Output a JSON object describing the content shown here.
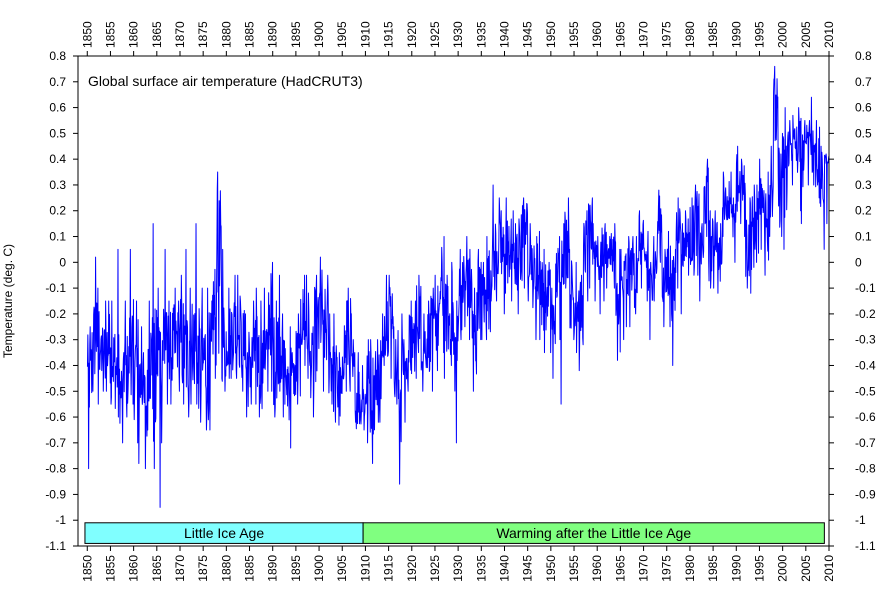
{
  "chart_data": {
    "type": "line",
    "title": "Global surface air temperature (HadCRUT3)",
    "ylabel": "Temperature (deg. C)",
    "xlim": [
      1848,
      2010
    ],
    "ylim": [
      -1.1,
      0.8
    ],
    "x_ticks": [
      1850,
      1855,
      1860,
      1865,
      1870,
      1875,
      1880,
      1885,
      1890,
      1895,
      1900,
      1905,
      1910,
      1915,
      1920,
      1925,
      1930,
      1935,
      1940,
      1945,
      1950,
      1955,
      1960,
      1965,
      1970,
      1975,
      1980,
      1985,
      1990,
      1995,
      2000,
      2005,
      2010
    ],
    "y_ticks": [
      0.8,
      0.7,
      0.6,
      0.5,
      0.4,
      0.3,
      0.2,
      0.1,
      0,
      -0.1,
      -0.2,
      -0.3,
      -0.4,
      -0.5,
      -0.6,
      -0.7,
      -0.8,
      -0.9,
      -1,
      -1.1
    ],
    "y_tick_labels": [
      "0.8",
      "0.7",
      "0.6",
      "0.5",
      "0.4",
      "0.3",
      "0.2",
      "0.1",
      "0",
      "-0.1",
      "-0.2",
      "-0.3",
      "-0.4",
      "-0.5",
      "-0.6",
      "-0.7",
      "-0.8",
      "-0.9",
      "-1",
      "-1.1"
    ],
    "grid": false,
    "series": [
      {
        "color": "#0000ff",
        "resolution": "monthly (approximate reading of yearly envelope)",
        "x": [
          1850,
          1851,
          1852,
          1853,
          1854,
          1855,
          1856,
          1857,
          1858,
          1859,
          1860,
          1861,
          1862,
          1863,
          1864,
          1865,
          1866,
          1867,
          1868,
          1869,
          1870,
          1871,
          1872,
          1873,
          1874,
          1875,
          1876,
          1877,
          1878,
          1879,
          1880,
          1881,
          1882,
          1883,
          1884,
          1885,
          1886,
          1887,
          1888,
          1889,
          1890,
          1891,
          1892,
          1893,
          1894,
          1895,
          1896,
          1897,
          1898,
          1899,
          1900,
          1901,
          1902,
          1903,
          1904,
          1905,
          1906,
          1907,
          1908,
          1909,
          1910,
          1911,
          1912,
          1913,
          1914,
          1915,
          1916,
          1917,
          1918,
          1919,
          1920,
          1921,
          1922,
          1923,
          1924,
          1925,
          1926,
          1927,
          1928,
          1929,
          1930,
          1931,
          1932,
          1933,
          1934,
          1935,
          1936,
          1937,
          1938,
          1939,
          1940,
          1941,
          1942,
          1943,
          1944,
          1945,
          1946,
          1947,
          1948,
          1949,
          1950,
          1951,
          1952,
          1953,
          1954,
          1955,
          1956,
          1957,
          1958,
          1959,
          1960,
          1961,
          1962,
          1963,
          1964,
          1965,
          1966,
          1967,
          1968,
          1969,
          1970,
          1971,
          1972,
          1973,
          1974,
          1975,
          1976,
          1977,
          1978,
          1979,
          1980,
          1981,
          1982,
          1983,
          1984,
          1985,
          1986,
          1987,
          1988,
          1989,
          1990,
          1991,
          1992,
          1993,
          1994,
          1995,
          1996,
          1997,
          1998,
          1999,
          2000,
          2001,
          2002,
          2003,
          2004,
          2005,
          2006,
          2007,
          2008,
          2009
        ],
        "mean": [
          -0.45,
          -0.3,
          -0.3,
          -0.35,
          -0.33,
          -0.38,
          -0.42,
          -0.5,
          -0.42,
          -0.33,
          -0.4,
          -0.46,
          -0.55,
          -0.38,
          -0.46,
          -0.35,
          -0.3,
          -0.32,
          -0.34,
          -0.3,
          -0.32,
          -0.36,
          -0.3,
          -0.32,
          -0.38,
          -0.38,
          -0.4,
          -0.2,
          -0.05,
          -0.3,
          -0.28,
          -0.26,
          -0.26,
          -0.32,
          -0.4,
          -0.38,
          -0.36,
          -0.4,
          -0.33,
          -0.2,
          -0.38,
          -0.32,
          -0.42,
          -0.45,
          -0.45,
          -0.38,
          -0.22,
          -0.26,
          -0.4,
          -0.28,
          -0.2,
          -0.26,
          -0.38,
          -0.45,
          -0.52,
          -0.33,
          -0.3,
          -0.45,
          -0.52,
          -0.53,
          -0.48,
          -0.5,
          -0.44,
          -0.42,
          -0.22,
          -0.17,
          -0.4,
          -0.48,
          -0.4,
          -0.33,
          -0.3,
          -0.2,
          -0.32,
          -0.3,
          -0.3,
          -0.22,
          -0.1,
          -0.22,
          -0.2,
          -0.35,
          -0.12,
          -0.08,
          -0.1,
          -0.3,
          -0.12,
          -0.15,
          -0.1,
          0.0,
          0.05,
          0.02,
          0.05,
          0.05,
          0.0,
          0.05,
          0.15,
          0.03,
          -0.05,
          -0.05,
          -0.12,
          -0.12,
          -0.22,
          -0.05,
          0.02,
          0.08,
          -0.12,
          -0.15,
          -0.2,
          0.05,
          0.1,
          0.05,
          0.0,
          0.05,
          0.03,
          0.05,
          -0.2,
          -0.1,
          -0.05,
          -0.02,
          -0.06,
          0.08,
          0.02,
          -0.08,
          0.0,
          0.15,
          -0.08,
          -0.03,
          -0.1,
          0.15,
          0.05,
          0.1,
          0.1,
          0.15,
          0.05,
          0.25,
          0.05,
          0.1,
          0.0,
          0.25,
          0.25,
          0.15,
          0.3,
          0.3,
          0.08,
          0.12,
          0.15,
          0.28,
          0.15,
          0.3,
          0.57,
          0.3,
          0.3,
          0.45,
          0.45,
          0.45,
          0.4,
          0.5,
          0.45,
          0.4,
          0.3,
          0.4
        ],
        "max": [
          -0.25,
          0.02,
          -0.1,
          -0.15,
          -0.15,
          -0.15,
          0.05,
          -0.35,
          -0.15,
          0.05,
          -0.15,
          -0.25,
          -0.35,
          -0.15,
          0.15,
          -0.1,
          0.05,
          -0.15,
          -0.1,
          -0.15,
          -0.05,
          0.05,
          -0.1,
          0.15,
          -0.1,
          -0.1,
          -0.15,
          0.05,
          0.35,
          0.05,
          -0.1,
          -0.05,
          -0.05,
          -0.15,
          -0.2,
          -0.15,
          -0.1,
          -0.15,
          -0.1,
          0.0,
          -0.15,
          -0.05,
          -0.2,
          -0.25,
          -0.35,
          -0.2,
          -0.05,
          -0.05,
          -0.25,
          -0.05,
          0.02,
          -0.05,
          -0.2,
          -0.2,
          -0.35,
          -0.15,
          -0.1,
          -0.3,
          -0.35,
          -0.4,
          -0.3,
          -0.3,
          -0.3,
          -0.2,
          -0.05,
          -0.05,
          -0.25,
          -0.2,
          -0.3,
          -0.15,
          -0.15,
          -0.05,
          -0.2,
          -0.15,
          -0.1,
          -0.05,
          0.1,
          -0.05,
          0.0,
          -0.15,
          0.05,
          0.1,
          0.05,
          -0.1,
          0.05,
          0.0,
          0.1,
          0.3,
          0.25,
          0.2,
          0.25,
          0.2,
          0.15,
          0.22,
          0.25,
          0.15,
          0.1,
          0.12,
          0.05,
          0.0,
          -0.1,
          0.1,
          0.15,
          0.25,
          0.05,
          0.0,
          -0.05,
          0.2,
          0.25,
          0.15,
          0.1,
          0.15,
          0.1,
          0.15,
          0.05,
          0.05,
          0.1,
          0.1,
          0.1,
          0.2,
          0.12,
          0.0,
          0.1,
          0.28,
          0.05,
          0.12,
          0.05,
          0.25,
          0.15,
          0.2,
          0.25,
          0.3,
          0.15,
          0.4,
          0.2,
          0.2,
          0.15,
          0.35,
          0.35,
          0.25,
          0.45,
          0.4,
          0.25,
          0.3,
          0.3,
          0.4,
          0.35,
          0.45,
          0.76,
          0.5,
          0.6,
          0.55,
          0.57,
          0.6,
          0.55,
          0.55,
          0.64,
          0.55,
          0.45,
          0.42
        ],
        "min": [
          -0.8,
          -0.5,
          -0.55,
          -0.5,
          -0.5,
          -0.55,
          -0.6,
          -0.7,
          -0.6,
          -0.55,
          -0.7,
          -0.78,
          -0.8,
          -0.65,
          -0.8,
          -0.95,
          -0.7,
          -0.55,
          -0.55,
          -0.5,
          -0.55,
          -0.6,
          -0.55,
          -0.55,
          -0.62,
          -0.65,
          -0.65,
          -0.45,
          -0.45,
          -0.5,
          -0.45,
          -0.45,
          -0.45,
          -0.5,
          -0.6,
          -0.55,
          -0.55,
          -0.6,
          -0.5,
          -0.5,
          -0.6,
          -0.5,
          -0.6,
          -0.72,
          -0.98,
          -0.55,
          -0.4,
          -0.45,
          -0.6,
          -0.5,
          -0.5,
          -0.45,
          -0.55,
          -0.62,
          -0.72,
          -0.5,
          -0.5,
          -0.62,
          -0.68,
          -0.65,
          -0.7,
          -0.78,
          -0.62,
          -0.62,
          -0.4,
          -0.45,
          -0.55,
          -0.86,
          -0.62,
          -0.5,
          -0.45,
          -0.35,
          -0.5,
          -0.45,
          -0.5,
          -0.42,
          -0.35,
          -0.45,
          -0.4,
          -0.7,
          -0.3,
          -0.25,
          -0.3,
          -0.5,
          -0.3,
          -0.3,
          -0.3,
          -0.15,
          -0.15,
          -0.2,
          -0.12,
          -0.15,
          -0.2,
          -0.15,
          -0.1,
          -0.15,
          -0.3,
          -0.3,
          -0.35,
          -0.35,
          -0.45,
          -0.3,
          -0.55,
          -0.1,
          -0.3,
          -0.35,
          -0.42,
          -0.15,
          -0.1,
          -0.15,
          -0.2,
          -0.15,
          -0.1,
          -0.1,
          -0.38,
          -0.3,
          -0.25,
          -0.25,
          -0.2,
          -0.1,
          -0.15,
          -0.3,
          -0.15,
          0.0,
          -0.25,
          -0.25,
          -0.4,
          -0.1,
          -0.2,
          -0.05,
          -0.05,
          -0.05,
          -0.15,
          0.1,
          -0.1,
          -0.1,
          -0.12,
          0.1,
          0.0,
          0.0,
          0.15,
          0.1,
          -0.1,
          -0.12,
          0.0,
          0.05,
          -0.05,
          0.1,
          0.1,
          0.1,
          0.05,
          0.2,
          0.3,
          0.2,
          0.15,
          0.3,
          0.3,
          0.25,
          0.05,
          0.15
        ]
      }
    ],
    "annotations": [
      {
        "text": "Little Ice Age",
        "x_start": 1849.5,
        "x_end": 1909.5,
        "y_top": -1.01,
        "y_bottom": -1.09,
        "fill": "#80ffff"
      },
      {
        "text": "Warming after the Little Ice Age",
        "x_start": 1909.5,
        "x_end": 2009.0,
        "y_top": -1.01,
        "y_bottom": -1.09,
        "fill": "#80ff80"
      }
    ]
  }
}
